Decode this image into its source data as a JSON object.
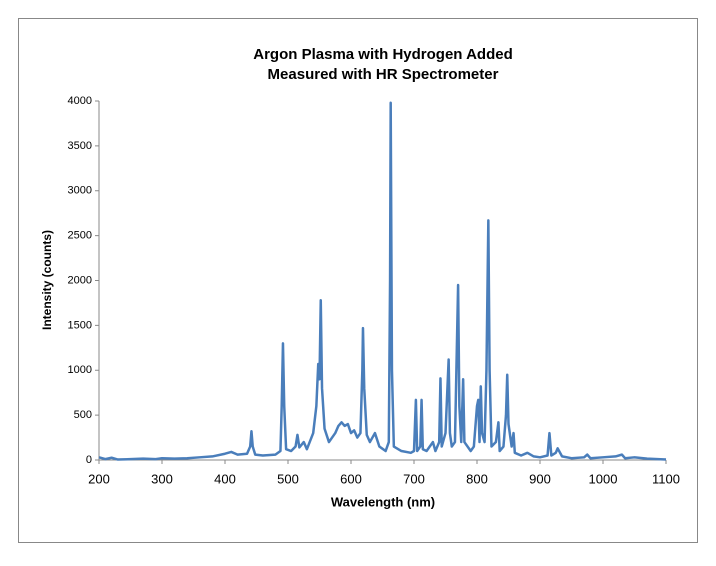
{
  "chart_data": {
    "type": "line",
    "title": "Argon Plasma with Hydrogen Added",
    "subtitle": "Measured with HR Spectrometer",
    "x_label": "Wavelength (nm)",
    "y_label": "Intensity (counts)",
    "xlim": [
      200,
      1100
    ],
    "xticks": [
      200,
      300,
      400,
      500,
      600,
      700,
      800,
      900,
      1000,
      1100
    ],
    "ylim": [
      0,
      4000
    ],
    "yticks": [
      0,
      500,
      1000,
      1500,
      2000,
      2500,
      3000,
      3500,
      4000
    ],
    "grid": false,
    "series": [
      {
        "name": "Intensity",
        "color": "#4a7ebb",
        "x": [
          200,
          210,
          220,
          230,
          250,
          270,
          290,
          300,
          320,
          340,
          360,
          380,
          400,
          410,
          420,
          435,
          440,
          442,
          444,
          448,
          460,
          480,
          488,
          490,
          492,
          494,
          497,
          505,
          512,
          515,
          518,
          525,
          530,
          540,
          545,
          548,
          550,
          552,
          554,
          558,
          565,
          575,
          580,
          585,
          590,
          595,
          600,
          605,
          610,
          615,
          618,
          619,
          621,
          625,
          630,
          638,
          645,
          655,
          660,
          662,
          663,
          665,
          668,
          680,
          695,
          700,
          703,
          705,
          710,
          712,
          714,
          720,
          730,
          734,
          740,
          742,
          744,
          750,
          755,
          757,
          760,
          765,
          770,
          772,
          775,
          778,
          780,
          790,
          795,
          800,
          802,
          804,
          806,
          808,
          812,
          815,
          818,
          820,
          823,
          830,
          834,
          836,
          842,
          846,
          848,
          850,
          855,
          858,
          860,
          870,
          880,
          890,
          900,
          912,
          915,
          918,
          925,
          928,
          935,
          950,
          970,
          975,
          980,
          1000,
          1020,
          1030,
          1035,
          1050,
          1070,
          1100
        ],
        "values": [
          30,
          10,
          25,
          5,
          10,
          15,
          10,
          20,
          15,
          20,
          30,
          40,
          70,
          90,
          60,
          70,
          150,
          320,
          150,
          60,
          50,
          60,
          100,
          600,
          1300,
          600,
          120,
          100,
          150,
          280,
          140,
          200,
          120,
          300,
          600,
          1070,
          900,
          1780,
          800,
          350,
          200,
          300,
          380,
          420,
          380,
          400,
          300,
          330,
          250,
          300,
          1000,
          1470,
          800,
          280,
          200,
          300,
          150,
          100,
          200,
          2000,
          3980,
          1000,
          150,
          100,
          80,
          100,
          670,
          100,
          150,
          670,
          120,
          100,
          200,
          100,
          200,
          910,
          150,
          300,
          1120,
          300,
          150,
          200,
          1950,
          600,
          200,
          900,
          200,
          100,
          150,
          600,
          670,
          200,
          820,
          300,
          200,
          1000,
          2670,
          1000,
          150,
          200,
          420,
          100,
          150,
          500,
          950,
          400,
          150,
          300,
          80,
          50,
          80,
          40,
          30,
          50,
          300,
          50,
          80,
          130,
          40,
          20,
          30,
          60,
          20,
          30,
          40,
          60,
          20,
          30,
          15,
          5
        ]
      }
    ]
  }
}
